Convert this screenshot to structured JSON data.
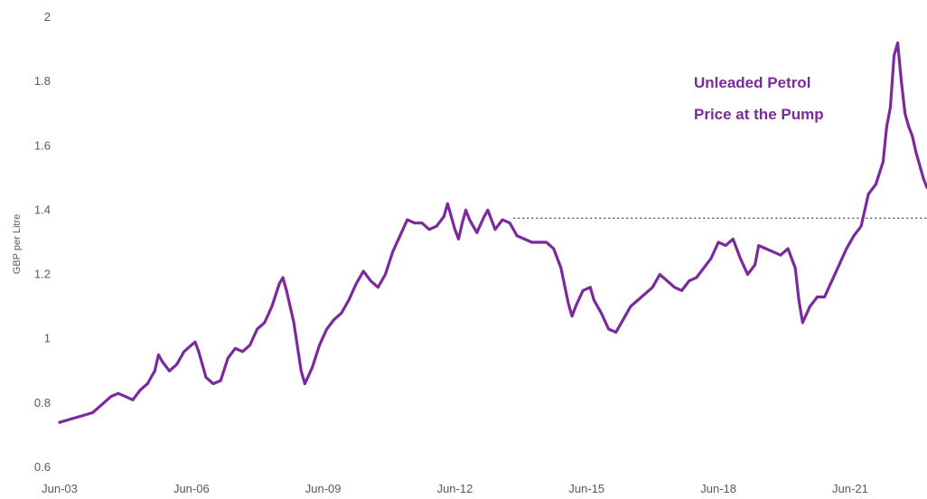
{
  "chart_data": {
    "type": "line",
    "ylabel": "GBP per Litre",
    "xlabel": "",
    "ylim": [
      0.6,
      2.0
    ],
    "y_ticks": [
      "0.6",
      "0.8",
      "1",
      "1.2",
      "1.4",
      "1.6",
      "1.8",
      "2"
    ],
    "x_tick_labels": [
      "Jun-03",
      "Jun-06",
      "Jun-09",
      "Jun-12",
      "Jun-15",
      "Jun-18",
      "Jun-21"
    ],
    "annotation": [
      "Unleaded Petrol",
      "Price at the Pump"
    ],
    "reference_line": {
      "y": 1.375,
      "from": "Oct-13",
      "style": "dotted"
    },
    "grid": false,
    "series": [
      {
        "color": "#7B2A9E",
        "points": [
          [
            "Jun-03",
            0.74
          ],
          [
            "Sep-03",
            0.75
          ],
          [
            "Dec-03",
            0.76
          ],
          [
            "Mar-04",
            0.77
          ],
          [
            "Jun-04",
            0.8
          ],
          [
            "Aug-04",
            0.82
          ],
          [
            "Oct-04",
            0.83
          ],
          [
            "Dec-04",
            0.82
          ],
          [
            "Feb-05",
            0.81
          ],
          [
            "Apr-05",
            0.84
          ],
          [
            "Jun-05",
            0.86
          ],
          [
            "Aug-05",
            0.9
          ],
          [
            "Sep-05",
            0.95
          ],
          [
            "Oct-05",
            0.93
          ],
          [
            "Dec-05",
            0.9
          ],
          [
            "Feb-06",
            0.92
          ],
          [
            "Apr-06",
            0.96
          ],
          [
            "Jun-06",
            0.98
          ],
          [
            "Jul-06",
            0.99
          ],
          [
            "Aug-06",
            0.96
          ],
          [
            "Oct-06",
            0.88
          ],
          [
            "Dec-06",
            0.86
          ],
          [
            "Feb-07",
            0.87
          ],
          [
            "Apr-07",
            0.94
          ],
          [
            "Jun-07",
            0.97
          ],
          [
            "Aug-07",
            0.96
          ],
          [
            "Oct-07",
            0.98
          ],
          [
            "Dec-07",
            1.03
          ],
          [
            "Feb-08",
            1.05
          ],
          [
            "Apr-08",
            1.1
          ],
          [
            "Jun-08",
            1.17
          ],
          [
            "Jul-08",
            1.19
          ],
          [
            "Aug-08",
            1.15
          ],
          [
            "Oct-08",
            1.05
          ],
          [
            "Dec-08",
            0.9
          ],
          [
            "Jan-09",
            0.86
          ],
          [
            "Mar-09",
            0.91
          ],
          [
            "May-09",
            0.98
          ],
          [
            "Jul-09",
            1.03
          ],
          [
            "Sep-09",
            1.06
          ],
          [
            "Nov-09",
            1.08
          ],
          [
            "Jan-10",
            1.12
          ],
          [
            "Mar-10",
            1.17
          ],
          [
            "May-10",
            1.21
          ],
          [
            "Jul-10",
            1.18
          ],
          [
            "Sep-10",
            1.16
          ],
          [
            "Nov-10",
            1.2
          ],
          [
            "Jan-11",
            1.27
          ],
          [
            "Mar-11",
            1.32
          ],
          [
            "May-11",
            1.37
          ],
          [
            "Jul-11",
            1.36
          ],
          [
            "Sep-11",
            1.36
          ],
          [
            "Nov-11",
            1.34
          ],
          [
            "Jan-12",
            1.35
          ],
          [
            "Mar-12",
            1.38
          ],
          [
            "Apr-12",
            1.42
          ],
          [
            "Jun-12",
            1.34
          ],
          [
            "Jul-12",
            1.31
          ],
          [
            "Aug-12",
            1.36
          ],
          [
            "Sep-12",
            1.4
          ],
          [
            "Oct-12",
            1.37
          ],
          [
            "Dec-12",
            1.33
          ],
          [
            "Feb-13",
            1.38
          ],
          [
            "Mar-13",
            1.4
          ],
          [
            "May-13",
            1.34
          ],
          [
            "Jul-13",
            1.37
          ],
          [
            "Sep-13",
            1.36
          ],
          [
            "Nov-13",
            1.32
          ],
          [
            "Jan-14",
            1.31
          ],
          [
            "Mar-14",
            1.3
          ],
          [
            "May-14",
            1.3
          ],
          [
            "Jul-14",
            1.3
          ],
          [
            "Sep-14",
            1.28
          ],
          [
            "Nov-14",
            1.22
          ],
          [
            "Jan-15",
            1.11
          ],
          [
            "Feb-15",
            1.07
          ],
          [
            "Mar-15",
            1.1
          ],
          [
            "May-15",
            1.15
          ],
          [
            "Jul-15",
            1.16
          ],
          [
            "Aug-15",
            1.12
          ],
          [
            "Oct-15",
            1.08
          ],
          [
            "Dec-15",
            1.03
          ],
          [
            "Feb-16",
            1.02
          ],
          [
            "Apr-16",
            1.06
          ],
          [
            "Jun-16",
            1.1
          ],
          [
            "Aug-16",
            1.12
          ],
          [
            "Oct-16",
            1.14
          ],
          [
            "Dec-16",
            1.16
          ],
          [
            "Feb-17",
            1.2
          ],
          [
            "Apr-17",
            1.18
          ],
          [
            "Jun-17",
            1.16
          ],
          [
            "Aug-17",
            1.15
          ],
          [
            "Oct-17",
            1.18
          ],
          [
            "Dec-17",
            1.19
          ],
          [
            "Feb-18",
            1.22
          ],
          [
            "Apr-18",
            1.25
          ],
          [
            "Jun-18",
            1.3
          ],
          [
            "Aug-18",
            1.29
          ],
          [
            "Oct-18",
            1.31
          ],
          [
            "Dec-18",
            1.25
          ],
          [
            "Feb-19",
            1.2
          ],
          [
            "Apr-19",
            1.23
          ],
          [
            "May-19",
            1.29
          ],
          [
            "Jul-19",
            1.28
          ],
          [
            "Sep-19",
            1.27
          ],
          [
            "Nov-19",
            1.26
          ],
          [
            "Jan-20",
            1.28
          ],
          [
            "Mar-20",
            1.22
          ],
          [
            "Apr-20",
            1.12
          ],
          [
            "May-20",
            1.05
          ],
          [
            "Jul-20",
            1.1
          ],
          [
            "Sep-20",
            1.13
          ],
          [
            "Nov-20",
            1.13
          ],
          [
            "Jan-21",
            1.18
          ],
          [
            "Mar-21",
            1.23
          ],
          [
            "May-21",
            1.28
          ],
          [
            "Jul-21",
            1.32
          ],
          [
            "Sep-21",
            1.35
          ],
          [
            "Nov-21",
            1.45
          ],
          [
            "Jan-22",
            1.48
          ],
          [
            "Mar-22",
            1.55
          ],
          [
            "Apr-22",
            1.66
          ],
          [
            "May-22",
            1.72
          ],
          [
            "Jun-22",
            1.88
          ],
          [
            "Jul-22",
            1.92
          ],
          [
            "Aug-22",
            1.8
          ],
          [
            "Sep-22",
            1.7
          ],
          [
            "Oct-22",
            1.66
          ],
          [
            "Nov-22",
            1.63
          ],
          [
            "Dec-22",
            1.58
          ],
          [
            "Feb-23",
            1.5
          ],
          [
            "Mar-23",
            1.47
          ]
        ]
      }
    ]
  }
}
